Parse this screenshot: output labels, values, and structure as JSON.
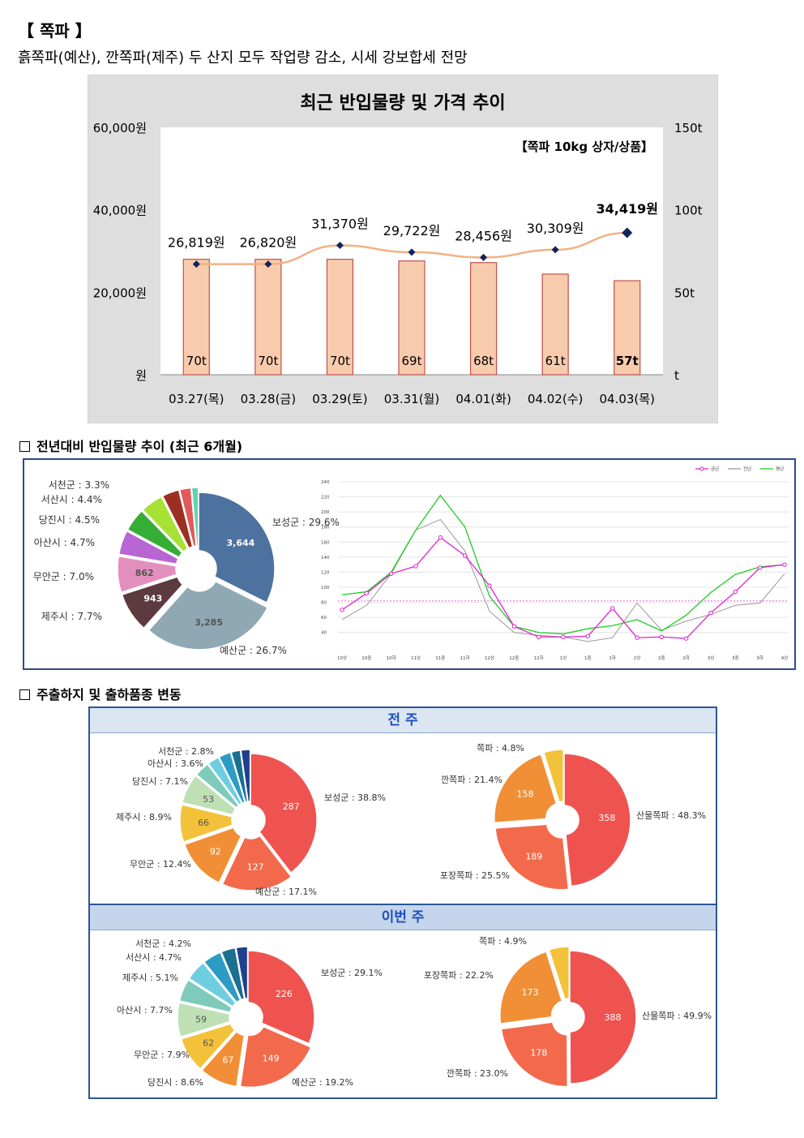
{
  "header": {
    "title": "【 쪽파 】",
    "subtitle": "흙쪽파(예산), 깐쪽파(제주) 두 산지 모두 작업량 감소, 시세 강보합세 전망"
  },
  "sections": {
    "trend": "전년대비 반입물량 추이 (최근 6개월)",
    "share": "주출하지 및 출하품종 변동"
  },
  "panels": {
    "prev_week": "전 주",
    "this_week": "이번 주"
  },
  "chart_data": [
    {
      "type": "bar",
      "title": "최근 반입물량 및 가격 추이",
      "annotation": "【쪽파 10kg 상자/상품】",
      "categories": [
        "03.27(목)",
        "03.28(금)",
        "03.29(토)",
        "03.31(월)",
        "04.01(화)",
        "04.02(수)",
        "04.03(목)"
      ],
      "series": [
        {
          "name": "반입물량",
          "axis": "right",
          "values": [
            70,
            70,
            70,
            69,
            68,
            61,
            57
          ],
          "labels": [
            "70t",
            "70t",
            "70t",
            "69t",
            "68t",
            "61t",
            "57t"
          ],
          "color": "#f8cbad"
        },
        {
          "name": "가격",
          "axis": "left",
          "type": "line",
          "values": [
            26819,
            26820,
            31370,
            29722,
            28456,
            30309,
            34419
          ],
          "labels": [
            "26,819원",
            "26,820원",
            "31,370원",
            "29,722원",
            "28,456원",
            "30,309원",
            "34,419원"
          ],
          "color": "#f4b183"
        }
      ],
      "ylim_left": [
        0,
        60000
      ],
      "ylim_right": [
        0,
        150
      ],
      "left_ticks": [
        "원",
        "20,000원",
        "40,000원",
        "60,000원"
      ],
      "right_ticks": [
        "t",
        "50t",
        "100t",
        "150t"
      ]
    },
    {
      "type": "pie",
      "slices": [
        {
          "label": "보성군 : 29.6%",
          "value": 29.6,
          "inner": "3,644",
          "color": "#4e729f"
        },
        {
          "label": "예산군 : 26.7%",
          "value": 26.7,
          "inner": "3,285",
          "color": "#8fa8b4"
        },
        {
          "label": "제주시 : 7.7%",
          "value": 7.7,
          "inner": "943",
          "color": "#5d3a3f"
        },
        {
          "label": "무안군 : 7.0%",
          "value": 7.0,
          "inner": "862",
          "color": "#e38fbd"
        },
        {
          "label": "아산시 : 4.7%",
          "value": 4.7,
          "inner": "",
          "color": "#b866d4"
        },
        {
          "label": "당진시 : 4.5%",
          "value": 4.5,
          "inner": "",
          "color": "#35ae35"
        },
        {
          "label": "서산시 : 4.4%",
          "value": 4.4,
          "inner": "",
          "color": "#a6e233"
        },
        {
          "label": "서천군 : 3.3%",
          "value": 3.3,
          "inner": "",
          "color": "#9b3022"
        },
        {
          "label": "",
          "value": 2.2,
          "inner": "",
          "color": "#e05a5a"
        },
        {
          "label": "",
          "value": 1.3,
          "inner": "",
          "color": "#5fd3b0"
        }
      ]
    },
    {
      "type": "line",
      "x": [
        "10상",
        "10중",
        "10하",
        "11상",
        "11중",
        "11하",
        "12상",
        "12중",
        "12하",
        "1상",
        "1중",
        "1하",
        "2상",
        "2중",
        "2하",
        "3상",
        "3중",
        "3하",
        "4상"
      ],
      "ylim": [
        30,
        240
      ],
      "yticks": [
        40,
        60,
        80,
        100,
        120,
        140,
        160,
        180,
        200,
        220,
        240
      ],
      "reference_line": 82,
      "series": [
        {
          "name": "금년",
          "color": "#e020d0",
          "values": [
            70,
            92,
            118,
            128,
            166,
            142,
            102,
            48,
            34,
            34,
            35,
            72,
            33,
            34,
            32,
            66,
            94,
            126,
            130
          ]
        },
        {
          "name": "전년",
          "color": "#999999",
          "values": [
            57,
            76,
            118,
            176,
            190,
            148,
            68,
            40,
            36,
            34,
            28,
            33,
            79,
            43,
            55,
            64,
            76,
            79,
            118
          ]
        },
        {
          "name": "평년",
          "color": "#22cc22",
          "values": [
            90,
            94,
            120,
            176,
            222,
            180,
            88,
            48,
            40,
            38,
            45,
            49,
            57,
            42,
            63,
            93,
            117,
            127,
            130
          ]
        }
      ]
    },
    {
      "type": "pie",
      "panel": "전 주",
      "slices": [
        {
          "label": "보성군 : 38.8%",
          "value": 38.8,
          "inner": "287",
          "color": "#ef5350"
        },
        {
          "label": "예산군 : 17.1%",
          "value": 17.1,
          "inner": "127",
          "color": "#f26a4b"
        },
        {
          "label": "무안군 : 12.4%",
          "value": 12.4,
          "inner": "92",
          "color": "#f08f35"
        },
        {
          "label": "제주시 : 8.9%",
          "value": 8.9,
          "inner": "66",
          "color": "#f3c23a"
        },
        {
          "label": "당진시 : 7.1%",
          "value": 7.1,
          "inner": "53",
          "color": "#bfe0b5"
        },
        {
          "label": "아산시 : 3.6%",
          "value": 3.6,
          "inner": "",
          "color": "#7ecbbb"
        },
        {
          "label": "서천군 : 2.8%",
          "value": 2.8,
          "inner": "",
          "color": "#6fcde0"
        },
        {
          "label": "",
          "value": 2.9,
          "inner": "",
          "color": "#2e9bc4"
        },
        {
          "label": "",
          "value": 2.2,
          "inner": "",
          "color": "#1b6f8f"
        },
        {
          "label": "",
          "value": 2.2,
          "inner": "",
          "color": "#1f3f8f"
        }
      ]
    },
    {
      "type": "pie",
      "panel": "전 주",
      "slices": [
        {
          "label": "산물쪽파 : 48.3%",
          "value": 48.3,
          "inner": "358",
          "color": "#ef5350"
        },
        {
          "label": "포장쪽파 : 25.5%",
          "value": 25.5,
          "inner": "189",
          "color": "#f26a4b"
        },
        {
          "label": "깐쪽파 : 21.4%",
          "value": 21.4,
          "inner": "158",
          "color": "#f08f35"
        },
        {
          "label": "쪽파 : 4.8%",
          "value": 4.8,
          "inner": "",
          "color": "#f3c23a"
        }
      ]
    },
    {
      "type": "pie",
      "panel": "이번 주",
      "slices": [
        {
          "label": "보성군 : 29.1%",
          "value": 29.1,
          "inner": "226",
          "color": "#ef5350"
        },
        {
          "label": "예산군 : 19.2%",
          "value": 19.2,
          "inner": "149",
          "color": "#f26a4b"
        },
        {
          "label": "당진시 : 8.6%",
          "value": 8.6,
          "inner": "67",
          "color": "#f08f35"
        },
        {
          "label": "무안군 : 7.9%",
          "value": 7.9,
          "inner": "62",
          "color": "#f3c23a"
        },
        {
          "label": "아산시 : 7.7%",
          "value": 7.7,
          "inner": "59",
          "color": "#bfe0b5"
        },
        {
          "label": "제주시 : 5.1%",
          "value": 5.1,
          "inner": "",
          "color": "#7ecbbb"
        },
        {
          "label": "서산시 : 4.7%",
          "value": 4.7,
          "inner": "",
          "color": "#6fcde0"
        },
        {
          "label": "서천군 : 4.2%",
          "value": 4.2,
          "inner": "",
          "color": "#2e9bc4"
        },
        {
          "label": "",
          "value": 3.2,
          "inner": "",
          "color": "#1b6f8f"
        },
        {
          "label": "",
          "value": 2.6,
          "inner": "",
          "color": "#1f3f8f"
        }
      ]
    },
    {
      "type": "pie",
      "panel": "이번 주",
      "slices": [
        {
          "label": "산물쪽파 : 49.9%",
          "value": 49.9,
          "inner": "388",
          "color": "#ef5350"
        },
        {
          "label": "깐쪽파 : 23.0%",
          "value": 23.0,
          "inner": "178",
          "color": "#f26a4b"
        },
        {
          "label": "포장쪽파 : 22.2%",
          "value": 22.2,
          "inner": "173",
          "color": "#f08f35"
        },
        {
          "label": "쪽파 : 4.9%",
          "value": 4.9,
          "inner": "",
          "color": "#f3c23a"
        }
      ]
    }
  ]
}
